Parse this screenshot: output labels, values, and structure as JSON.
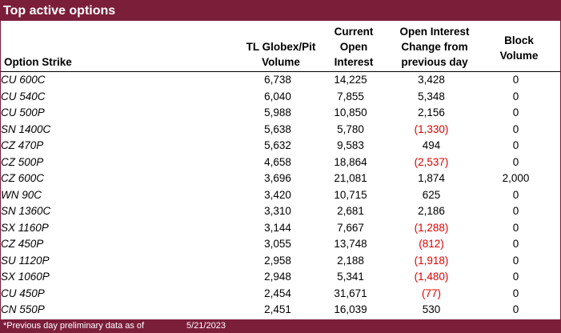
{
  "title": "Top active options",
  "headers": {
    "strike": "Option Strike",
    "volume_lines": [
      "TL Globex/Pit",
      "Volume"
    ],
    "open_interest_lines": [
      "Current",
      "Open",
      "Interest"
    ],
    "oi_change_lines": [
      "Open Interest",
      "Change from",
      "previous day"
    ],
    "block_lines": [
      "Block",
      "Volume"
    ]
  },
  "rows": [
    {
      "strike": "CU 600C",
      "volume": "6,738",
      "open_interest": "14,225",
      "oi_change": "3,428",
      "negative": false,
      "block": "0"
    },
    {
      "strike": "CU 540C",
      "volume": "6,040",
      "open_interest": "7,855",
      "oi_change": "5,348",
      "negative": false,
      "block": "0"
    },
    {
      "strike": "CU 500P",
      "volume": "5,988",
      "open_interest": "10,850",
      "oi_change": "2,156",
      "negative": false,
      "block": "0"
    },
    {
      "strike": "SN 1400C",
      "volume": "5,638",
      "open_interest": "5,780",
      "oi_change": "(1,330)",
      "negative": true,
      "block": "0"
    },
    {
      "strike": "CZ 470P",
      "volume": "5,632",
      "open_interest": "9,583",
      "oi_change": "494",
      "negative": false,
      "block": "0"
    },
    {
      "strike": "CZ 500P",
      "volume": "4,658",
      "open_interest": "18,864",
      "oi_change": "(2,537)",
      "negative": true,
      "block": "0"
    },
    {
      "strike": "CZ 600C",
      "volume": "3,696",
      "open_interest": "21,081",
      "oi_change": "1,874",
      "negative": false,
      "block": "2,000"
    },
    {
      "strike": "WN 90C",
      "volume": "3,420",
      "open_interest": "10,715",
      "oi_change": "625",
      "negative": false,
      "block": "0"
    },
    {
      "strike": "SN 1360C",
      "volume": "3,310",
      "open_interest": "2,681",
      "oi_change": "2,186",
      "negative": false,
      "block": "0"
    },
    {
      "strike": "SX 1160P",
      "volume": "3,144",
      "open_interest": "7,667",
      "oi_change": "(1,288)",
      "negative": true,
      "block": "0"
    },
    {
      "strike": "CZ 450P",
      "volume": "3,055",
      "open_interest": "13,748",
      "oi_change": "(812)",
      "negative": true,
      "block": "0"
    },
    {
      "strike": "SU 1120P",
      "volume": "2,958",
      "open_interest": "2,188",
      "oi_change": "(1,918)",
      "negative": true,
      "block": "0"
    },
    {
      "strike": "SX 1060P",
      "volume": "2,948",
      "open_interest": "5,341",
      "oi_change": "(1,480)",
      "negative": true,
      "block": "0"
    },
    {
      "strike": "CU 450P",
      "volume": "2,454",
      "open_interest": "31,671",
      "oi_change": "(77)",
      "negative": true,
      "block": "0"
    },
    {
      "strike": "CN 550P",
      "volume": "2,451",
      "open_interest": "16,039",
      "oi_change": "530",
      "negative": false,
      "block": "0"
    }
  ],
  "footer": {
    "note": "*Previous day preliminary data as of",
    "date": "5/21/2023"
  },
  "colors": {
    "brand": "#7b1e3a",
    "negative": "#e00000"
  }
}
